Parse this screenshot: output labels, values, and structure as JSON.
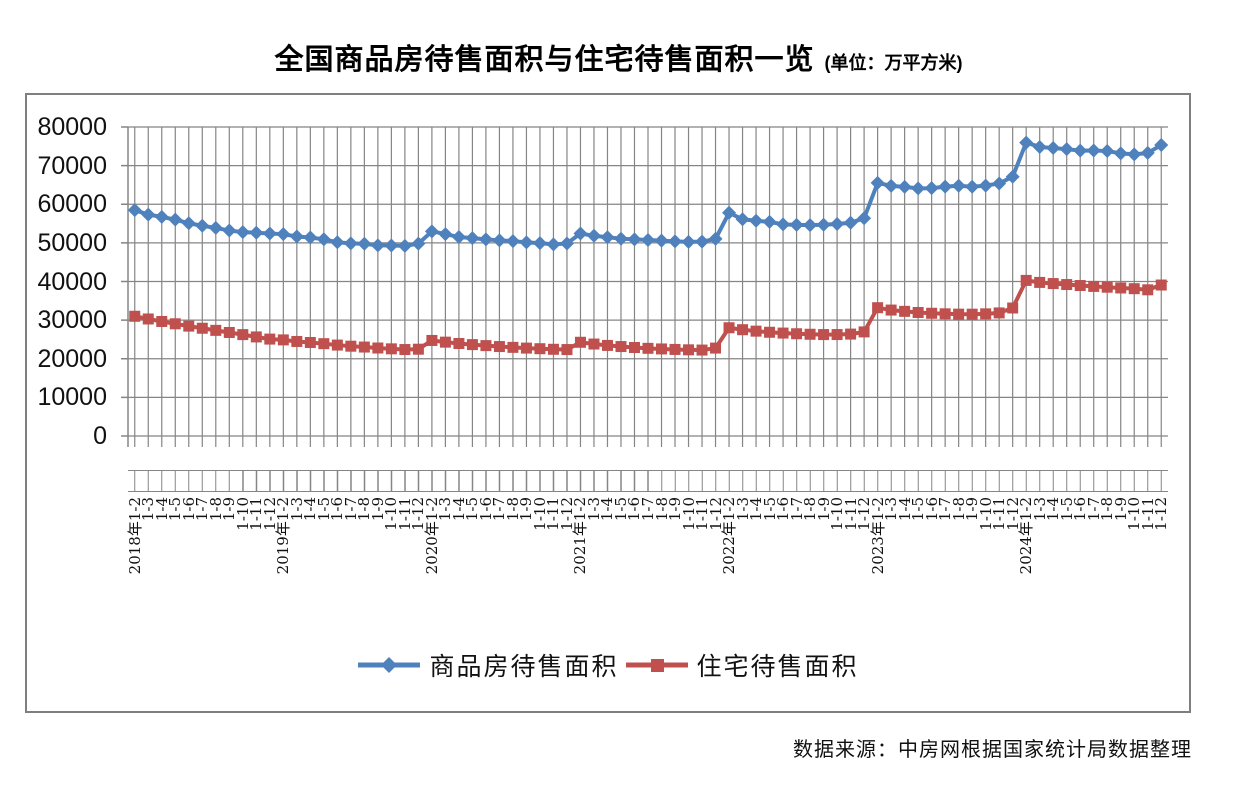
{
  "title": {
    "main": "全国商品房待售面积与住宅待售面积一览",
    "unit": "(单位：万平方米)"
  },
  "source": "数据来源：中房网根据国家统计局数据整理",
  "colors": {
    "series_blue": "#4F81BD",
    "series_red": "#C0504D",
    "gridline": "#858585",
    "text": "#111111"
  },
  "chart_data": {
    "type": "line",
    "title": "全国商品房待售面积与住宅待售面积一览",
    "unit_label": "万平方米",
    "ylim": [
      0,
      80000
    ],
    "y_ticks": [
      80000,
      70000,
      60000,
      50000,
      40000,
      30000,
      20000,
      10000,
      0
    ],
    "grid": true,
    "legend_position": "bottom",
    "x_tick_labels": [
      "2018年1-2",
      "1-3",
      "1-4",
      "1-5",
      "1-6",
      "1-7",
      "1-8",
      "1-9",
      "1-10",
      "1-11",
      "1-12",
      "2019年1-2",
      "1-3",
      "1-4",
      "1-5",
      "1-6",
      "1-7",
      "1-8",
      "1-9",
      "1-10",
      "1-11",
      "1-12",
      "2020年1-2",
      "1-3",
      "1-4",
      "1-5",
      "1-6",
      "1-7",
      "1-8",
      "1-9",
      "1-10",
      "1-11",
      "1-12",
      "2021年1-2",
      "1-3",
      "1-4",
      "1-5",
      "1-6",
      "1-7",
      "1-8",
      "1-9",
      "1-10",
      "1-11",
      "1-12",
      "2022年1-2",
      "1-3",
      "1-4",
      "1-5",
      "1-6",
      "1-7",
      "1-8",
      "1-9",
      "1-10",
      "1-11",
      "1-12",
      "2023年1-2",
      "1-3",
      "1-4",
      "1-5",
      "1-6",
      "1-7",
      "1-8",
      "1-9",
      "1-10",
      "1-11",
      "1-12",
      "2024年1-2",
      "1-3",
      "1-4",
      "1-5",
      "1-6",
      "1-7",
      "1-8",
      "1-9",
      "1-10",
      "1-11",
      "1-12"
    ],
    "series": [
      {
        "name": "商品房待售面积",
        "color": "#4F81BD",
        "marker": "diamond",
        "values": [
          58468,
          57329,
          56726,
          56010,
          55083,
          54428,
          53873,
          53191,
          52789,
          52627,
          52414,
          52251,
          51646,
          51380,
          50928,
          50162,
          49876,
          49784,
          49346,
          49323,
          49221,
          49821,
          52985,
          52273,
          51512,
          51230,
          50918,
          50662,
          50464,
          50142,
          49922,
          49604,
          49850,
          52425,
          51835,
          51449,
          51083,
          50917,
          50738,
          50583,
          50385,
          50246,
          50329,
          51023,
          57790,
          56113,
          55735,
          55433,
          54784,
          54655,
          54605,
          54694,
          54874,
          55203,
          56366,
          65528,
          64770,
          64487,
          64120,
          64159,
          64564,
          64795,
          64537,
          64835,
          65385,
          67127,
          75969,
          74833,
          74553,
          74256,
          73894,
          73926,
          73771,
          73177,
          72909,
          73286,
          75327
        ]
      },
      {
        "name": "住宅待售面积",
        "color": "#C0504D",
        "marker": "square",
        "values": [
          31000,
          30300,
          29650,
          29050,
          28450,
          27900,
          27350,
          26800,
          26250,
          25650,
          25091,
          24884,
          24474,
          24213,
          23902,
          23540,
          23252,
          23030,
          22780,
          22565,
          22384,
          22473,
          24737,
          24300,
          23950,
          23660,
          23400,
          23160,
          22950,
          22760,
          22600,
          22450,
          22379,
          24266,
          23810,
          23450,
          23160,
          22910,
          22700,
          22540,
          22410,
          22310,
          22250,
          22761,
          28026,
          27519,
          27147,
          26855,
          26647,
          26473,
          26340,
          26261,
          26265,
          26385,
          26947,
          33216,
          32601,
          32271,
          31979,
          31775,
          31639,
          31549,
          31537,
          31629,
          31863,
          33139,
          40283,
          39765,
          39465,
          39210,
          38960,
          38730,
          38525,
          38330,
          38140,
          37850,
          39088
        ]
      }
    ]
  }
}
